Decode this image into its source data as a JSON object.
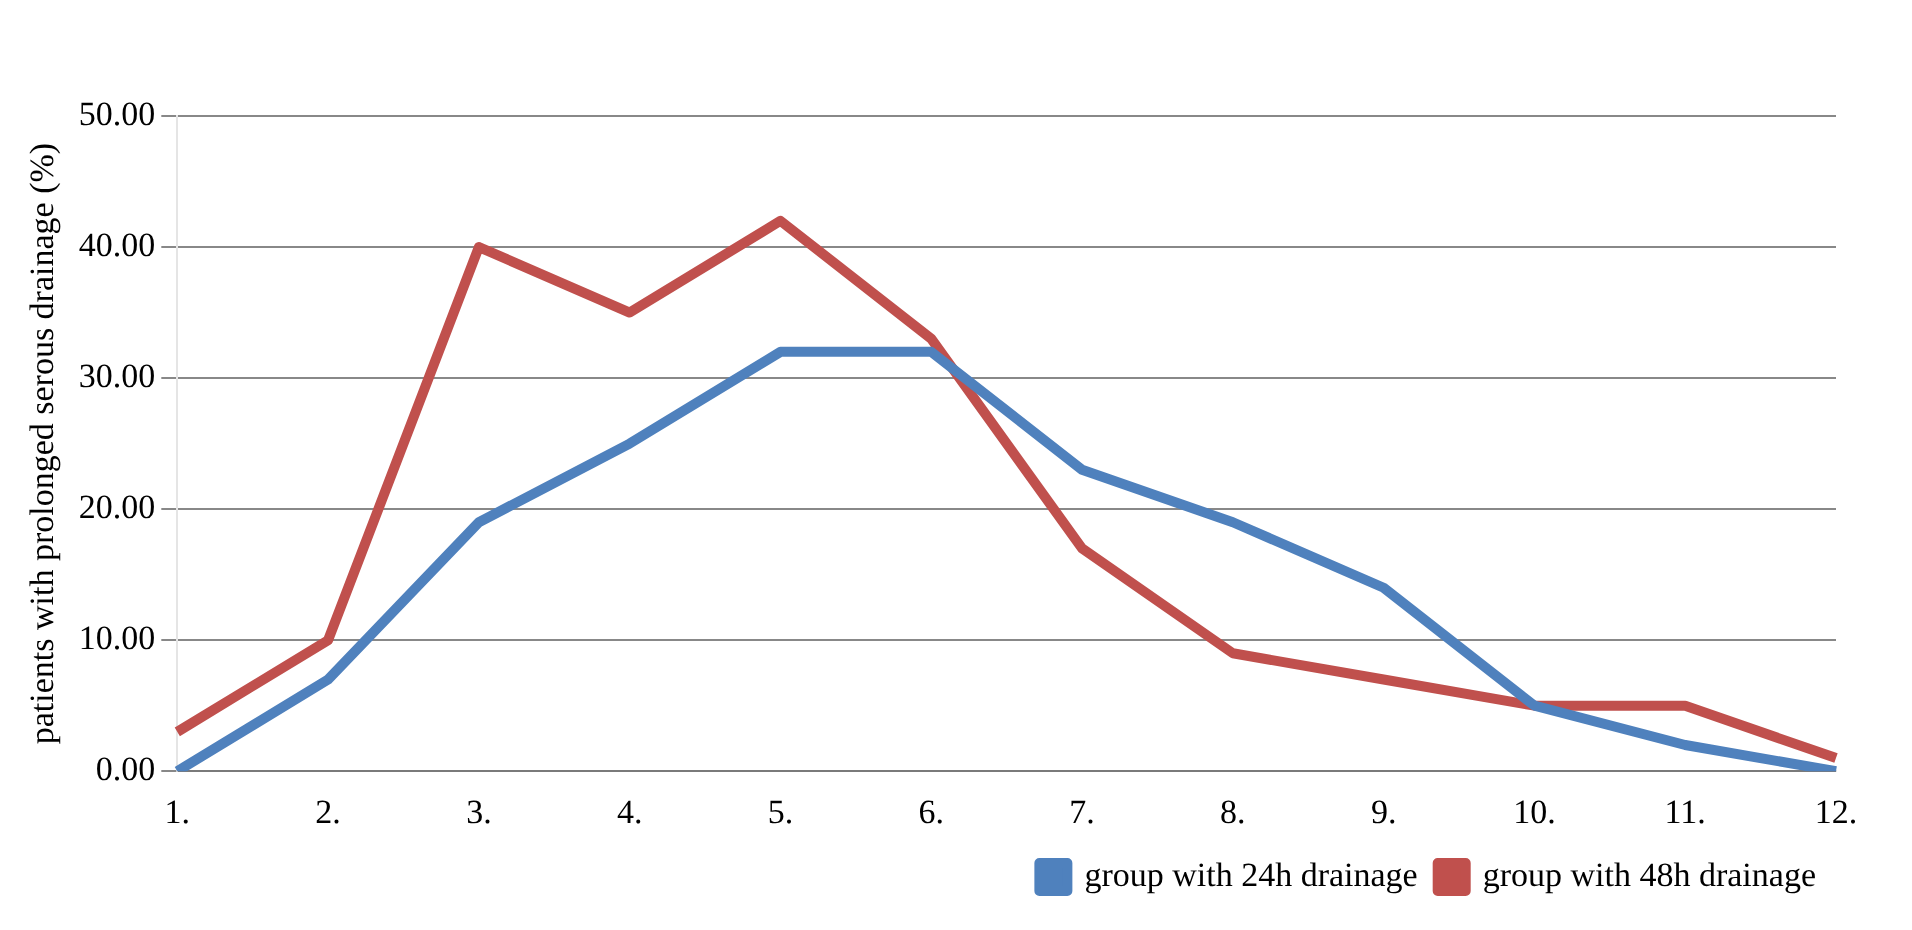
{
  "chart_data": {
    "type": "line",
    "ylabel": "patients with prolonged serous drainage (%)",
    "categories": [
      "1.",
      "2.",
      "3.",
      "4.",
      "5.",
      "6.",
      "7.",
      "8.",
      "9.",
      "10.",
      "11.",
      "12."
    ],
    "series": [
      {
        "name": "group with 24h drainage",
        "color": "#4f81bd",
        "values": [
          0,
          7,
          19,
          25,
          32,
          32,
          23,
          19,
          14,
          5,
          2,
          0
        ]
      },
      {
        "name": "group with 48h drainage",
        "color": "#c0504d",
        "values": [
          3,
          10,
          40,
          35,
          42,
          33,
          17,
          9,
          7,
          5,
          5,
          1
        ]
      }
    ],
    "ylim": [
      0,
      50
    ],
    "yticks": [
      {
        "value": 0,
        "label": "0.00"
      },
      {
        "value": 10,
        "label": "10.00"
      },
      {
        "value": 20,
        "label": "20.00"
      },
      {
        "value": 30,
        "label": "30.00"
      },
      {
        "value": 40,
        "label": "40.00"
      },
      {
        "value": 50,
        "label": "50.00"
      }
    ],
    "grid": "y",
    "legend": "bottom right",
    "marker": "none",
    "line_style": "solid"
  }
}
